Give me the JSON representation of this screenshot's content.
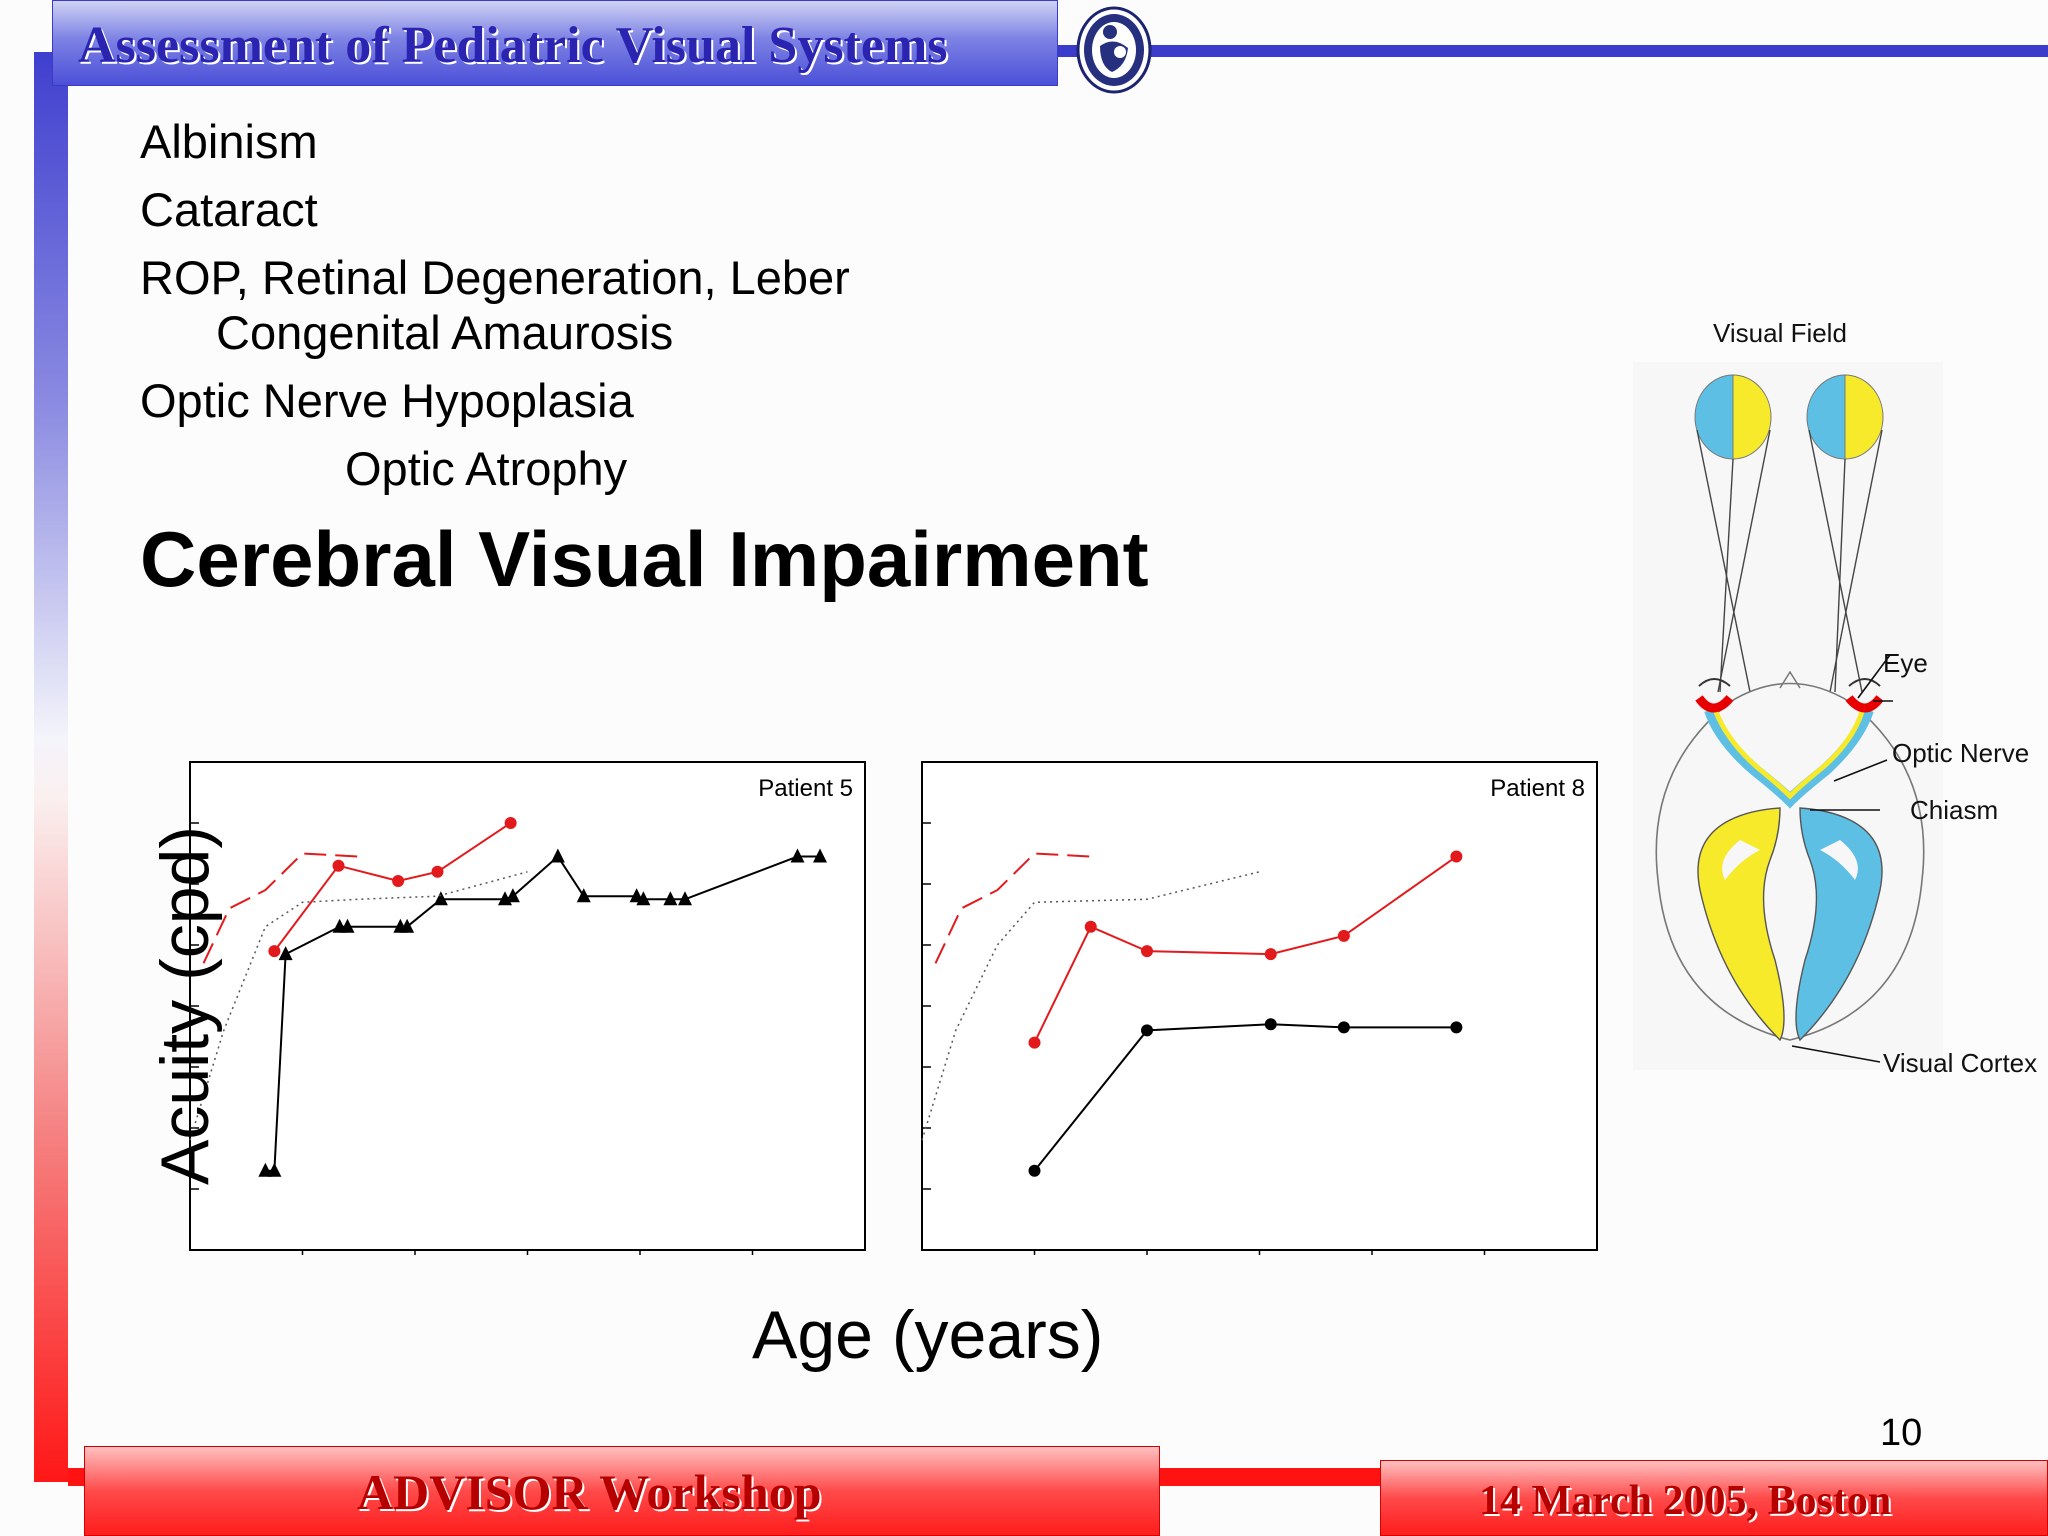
{
  "header": {
    "title": "Assessment of Pediatric Visual Systems",
    "logo": "mother-child-logo"
  },
  "list": {
    "items": [
      "Albinism",
      "Cataract",
      "ROP, Retinal Degeneration, Leber",
      "Congenital Amaurosis",
      "Optic Nerve Hypoplasia",
      "Optic Atrophy"
    ],
    "heading": "Cerebral Visual Impairment"
  },
  "axes": {
    "ylabel": "Acuity (cpd)",
    "xlabel": "Age (years)"
  },
  "chart_data": [
    {
      "type": "line",
      "title": "Patient 5",
      "xlim": [
        0,
        6
      ],
      "ylim": [
        0,
        8
      ],
      "series": [
        {
          "color": "#e31a1c",
          "marker": "circle",
          "x": [
            0.75,
            1.32,
            1.85,
            2.2,
            2.85
          ],
          "y": [
            4.9,
            6.3,
            6.05,
            6.2,
            7.0
          ]
        },
        {
          "color": "#000000",
          "marker": "triangle",
          "x": [
            0.67,
            0.75,
            0.85,
            1.33,
            1.4,
            1.87,
            1.93,
            2.23,
            2.8,
            2.87,
            3.27,
            3.5,
            3.97,
            4.03,
            4.27,
            4.4,
            5.4,
            5.6
          ],
          "y": [
            1.3,
            1.3,
            4.85,
            5.3,
            5.3,
            5.3,
            5.3,
            5.75,
            5.75,
            5.8,
            6.45,
            5.8,
            5.8,
            5.75,
            5.75,
            5.75,
            6.45,
            6.45
          ]
        },
        {
          "color": "#e31a1c",
          "style": "dashed",
          "x": [
            0.12,
            0.35,
            0.67,
            1.0,
            1.5
          ],
          "y": [
            4.7,
            5.6,
            5.9,
            6.5,
            6.45
          ]
        },
        {
          "color": "#555555",
          "style": "dotted",
          "x": [
            0.0,
            0.3,
            0.67,
            1.0,
            1.5,
            2.2,
            3.0
          ],
          "y": [
            1.8,
            3.6,
            5.3,
            5.7,
            5.75,
            5.8,
            6.2
          ]
        }
      ]
    },
    {
      "type": "line",
      "title": "Patient 8",
      "xlim": [
        0,
        6
      ],
      "ylim": [
        0,
        8
      ],
      "series": [
        {
          "color": "#e31a1c",
          "marker": "circle",
          "x": [
            1.0,
            1.5,
            2.0,
            3.1,
            3.75,
            4.75
          ],
          "y": [
            3.4,
            5.3,
            4.9,
            4.85,
            5.15,
            6.45
          ]
        },
        {
          "color": "#000000",
          "marker": "circle",
          "x": [
            1.0,
            2.0,
            3.1,
            3.75,
            4.75
          ],
          "y": [
            1.3,
            3.6,
            3.7,
            3.65,
            3.65
          ]
        },
        {
          "color": "#e31a1c",
          "style": "dashed",
          "x": [
            0.12,
            0.35,
            0.67,
            1.0,
            1.5
          ],
          "y": [
            4.7,
            5.6,
            5.9,
            6.5,
            6.45
          ]
        },
        {
          "color": "#555555",
          "style": "dotted",
          "x": [
            0.0,
            0.3,
            0.67,
            1.0,
            2.0,
            3.0
          ],
          "y": [
            1.8,
            3.6,
            5.0,
            5.7,
            5.75,
            6.2
          ]
        }
      ]
    }
  ],
  "diagram": {
    "labels": [
      "Visual Field",
      "Eye",
      "Optic Nerve",
      "Chiasm",
      "Visual Cortex"
    ],
    "colors": {
      "left": "#f6ea2a",
      "right": "#5dbfe4",
      "eye": "#e80000"
    }
  },
  "page_number": "10",
  "footer": {
    "left": "ADVISOR Workshop",
    "right": "14 March 2005,  Boston"
  },
  "theme": {
    "blue": "#3b3bcc",
    "red": "#ff1212",
    "marker_red": "#e31a1c"
  }
}
